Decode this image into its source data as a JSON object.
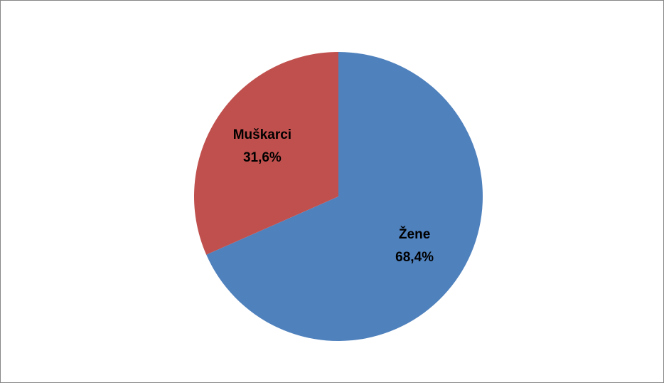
{
  "chart_data": {
    "type": "pie",
    "categories": [
      "Žene",
      "Muškarci"
    ],
    "values": [
      68.4,
      31.6
    ],
    "value_labels": [
      "68,4%",
      "31,6%"
    ],
    "colors": [
      "#4f81bd",
      "#c0504d"
    ]
  }
}
